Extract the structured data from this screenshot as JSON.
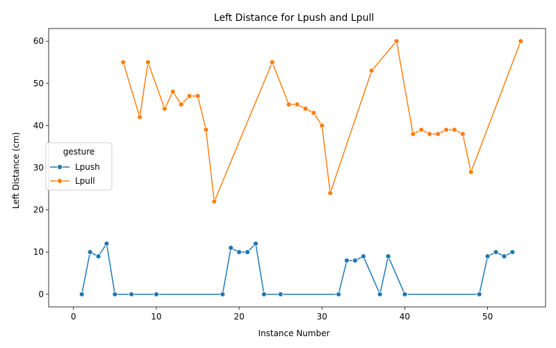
{
  "chart_data": {
    "type": "line",
    "title": "Left Distance for Lpush and Lpull",
    "xlabel": "Instance Number",
    "ylabel": "Left Distance (cm)",
    "xlim": [
      -3,
      57
    ],
    "ylim": [
      -3,
      63
    ],
    "xticks": [
      0,
      10,
      20,
      30,
      40,
      50
    ],
    "yticks": [
      0,
      10,
      20,
      30,
      40,
      50,
      60
    ],
    "grid": false,
    "legend": {
      "title": "gesture",
      "placement": "center-left"
    },
    "series": [
      {
        "name": "Lpush",
        "color": "#1f77b4",
        "x": [
          1,
          2,
          3,
          4,
          5,
          7,
          10,
          18,
          19,
          20,
          21,
          22,
          23,
          25,
          32,
          33,
          34,
          35,
          37,
          38,
          40,
          49,
          50,
          51,
          52,
          53
        ],
        "y": [
          0,
          10,
          9,
          12,
          0,
          0,
          0,
          0,
          11,
          10,
          10,
          12,
          0,
          0,
          0,
          8,
          8,
          9,
          0,
          9,
          0,
          0,
          9,
          10,
          9,
          10
        ]
      },
      {
        "name": "Lpull",
        "color": "#ff7f0e",
        "x": [
          6,
          8,
          9,
          11,
          12,
          13,
          14,
          15,
          16,
          17,
          24,
          26,
          27,
          28,
          29,
          30,
          31,
          36,
          39,
          41,
          42,
          43,
          44,
          45,
          46,
          47,
          48,
          54
        ],
        "y": [
          55,
          42,
          55,
          44,
          48,
          45,
          47,
          47,
          39,
          22,
          55,
          45,
          45,
          44,
          43,
          40,
          24,
          53,
          60,
          38,
          39,
          38,
          38,
          39,
          39,
          38,
          29,
          60
        ]
      }
    ]
  }
}
